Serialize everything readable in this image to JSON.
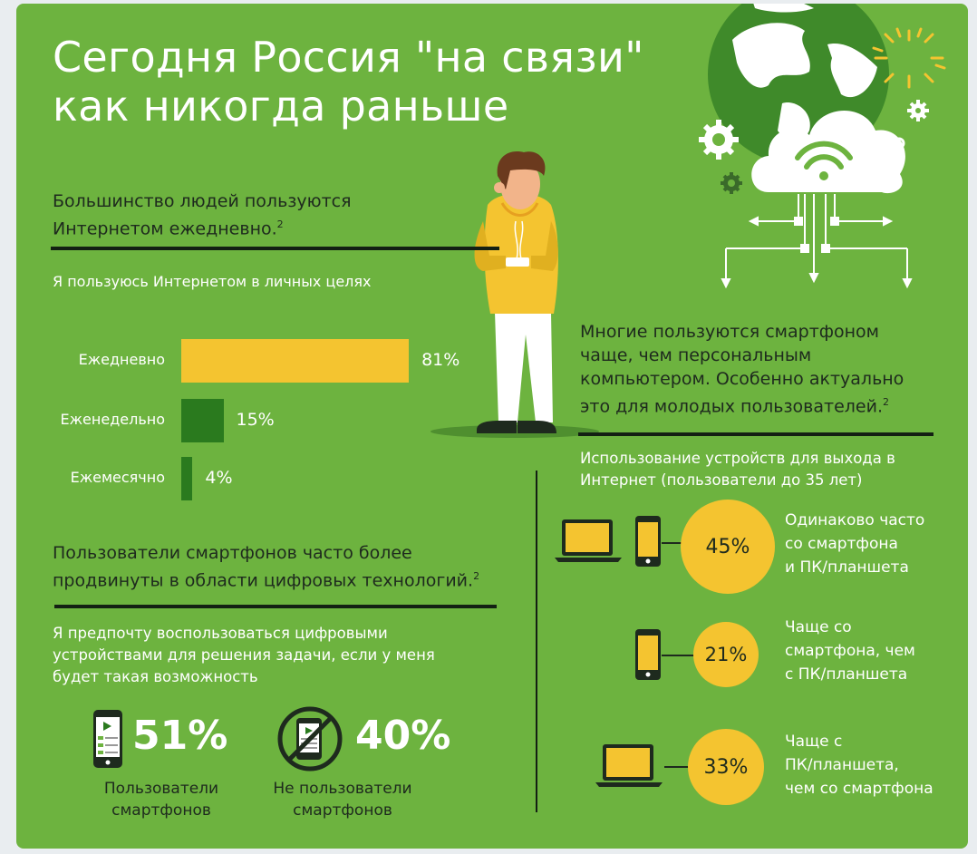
{
  "title_line1": "Сегодня Россия \"на связи\"",
  "title_line2": "как никогда раньше",
  "section1": {
    "heading_line1": "Большинство людей пользуются",
    "heading_line2": "Интернетом ежедневно.",
    "footnote": "2",
    "chart_title": "Я пользуюсь Интернетом в личных целях"
  },
  "chart_data": [
    {
      "type": "bar",
      "title": "Я пользуюсь Интернетом в личных целях",
      "categories": [
        "Ежедневно",
        "Еженедельно",
        "Ежемесячно"
      ],
      "values": [
        81,
        15,
        4
      ],
      "value_labels": [
        "81%",
        "15%",
        "4%"
      ],
      "colors": [
        "#f4c430",
        "#2a7a1e",
        "#2a7a1e"
      ],
      "orientation": "horizontal"
    },
    {
      "type": "table",
      "title": "Я предпочту воспользоваться цифровыми устройствами для решения задачи, если у меня будет такая возможность",
      "categories": [
        "Пользователи смартфонов",
        "Не пользователи смартфонов"
      ],
      "values": [
        51,
        40
      ],
      "value_labels": [
        "51%",
        "40%"
      ]
    },
    {
      "type": "table",
      "title": "Использование устройств для выхода в Интернет (пользователи до 35 лет)",
      "categories": [
        "Одинаково часто со смартфона и ПК/планшета",
        "Чаще со смартфона, чем с ПК/планшета",
        "Чаще с ПК/планшета, чем со смартфона"
      ],
      "values": [
        45,
        21,
        33
      ],
      "value_labels": [
        "45%",
        "21%",
        "33%"
      ]
    }
  ],
  "section2": {
    "heading_line1": "Пользователи смартфонов часто более",
    "heading_line2": "продвинуты в области цифровых технологий.",
    "footnote": "2",
    "question_line1": "Я предпочту воспользоваться цифровыми",
    "question_line2": "устройствами для решения задачи, если у меня",
    "question_line3": "будет такая возможность",
    "users_value": "51%",
    "users_caption_line1": "Пользователи",
    "users_caption_line2": "смартфонов",
    "nonusers_value": "40%",
    "nonusers_caption_line1": "Не пользователи",
    "nonusers_caption_line2": "смартфонов"
  },
  "section3": {
    "heading_line1": "Многие пользуются смартфоном",
    "heading_line2": "чаще, чем персональным",
    "heading_line3": "компьютером. Особенно актуально",
    "heading_line4": "это для молодых пользователей.",
    "footnote": "2",
    "chart_title_line1": "Использование устройств для выхода в",
    "chart_title_line2": "Интернет (пользователи до 35 лет)",
    "items": [
      {
        "value": "45%",
        "line1": "Одинаково часто",
        "line2": "со смартфона",
        "line3": "и ПК/планшета"
      },
      {
        "value": "21%",
        "line1": "Чаще со",
        "line2": "смартфона, чем",
        "line3": "с ПК/планшета"
      },
      {
        "value": "33%",
        "line1": "Чаще с",
        "line2": "ПК/планшета,",
        "line3": "чем со смартфона"
      }
    ]
  },
  "colors": {
    "background": "#6db33f",
    "accent_yellow": "#f4c430",
    "dark_green": "#2a7a1e",
    "dark": "#132013"
  },
  "icons": [
    "globe-icon",
    "sun-icon",
    "gear-icon",
    "cloud-wifi-icon",
    "person-with-phone-illustration",
    "smartphone-icon",
    "laptop-icon",
    "no-smartphone-icon"
  ]
}
